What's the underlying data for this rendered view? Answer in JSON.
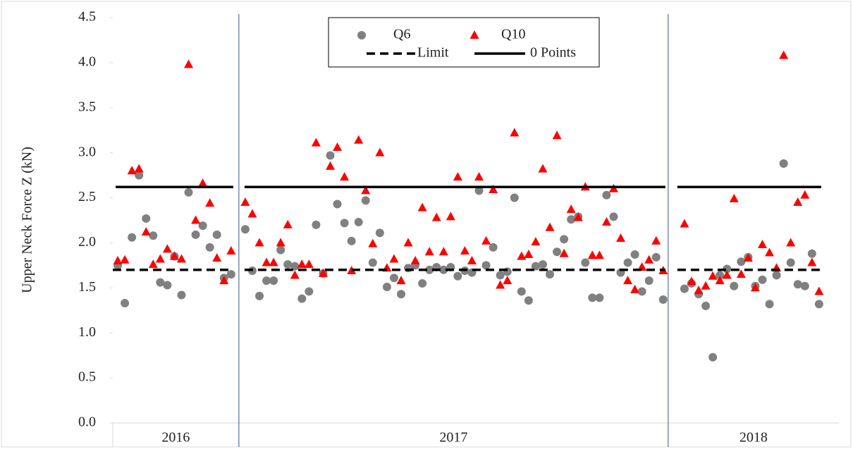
{
  "chart_data": {
    "type": "scatter",
    "y_label": "Upper Neck Force Z (kN)",
    "ylim": [
      0,
      4.5
    ],
    "yticks": [
      {
        "value": 0,
        "label": "0.0"
      },
      0.5,
      {
        "value": 1,
        "label": "1.0"
      },
      1.5,
      {
        "value": 2,
        "label": "2.0"
      },
      2.5,
      {
        "value": 3,
        "label": "3.0"
      },
      3.5,
      {
        "value": 4,
        "label": "4.0"
      },
      4.5
    ],
    "xlim": [
      -0.7,
      101.8
    ],
    "x_groups": [
      {
        "label": "2016",
        "range": [
          -0.7,
          17.1
        ]
      },
      {
        "label": "2017",
        "range": [
          17.1,
          77.7
        ]
      },
      {
        "label": "2018",
        "range": [
          77.7,
          101.8
        ]
      }
    ],
    "legend": "top-center",
    "series": [
      {
        "name": "Q6",
        "color": "#808080",
        "marker": "circle",
        "x": [
          0,
          1,
          2,
          3,
          4,
          5,
          6,
          7,
          8,
          9,
          10,
          11,
          12,
          13,
          14,
          15,
          16,
          18,
          19,
          20,
          21,
          22,
          23,
          24,
          25,
          26,
          27,
          28,
          29,
          30,
          31,
          32,
          33,
          34,
          35,
          36,
          37,
          38,
          39,
          40,
          41,
          42,
          43,
          44,
          45,
          46,
          47,
          48,
          49,
          50,
          51,
          52,
          53,
          54,
          55,
          56,
          57,
          58,
          59,
          60,
          61,
          62,
          63,
          64,
          65,
          66,
          67,
          68,
          69,
          70,
          71,
          72,
          73,
          74,
          75,
          76,
          77,
          80,
          81,
          82,
          83,
          84,
          85,
          86,
          87,
          88,
          89,
          90,
          91,
          92,
          93,
          94,
          95,
          96,
          97,
          98,
          99
        ],
        "values": [
          1.75,
          1.33,
          2.06,
          2.75,
          2.27,
          2.08,
          1.56,
          1.53,
          1.85,
          1.42,
          2.56,
          2.09,
          2.19,
          1.95,
          2.09,
          1.61,
          1.65,
          2.15,
          1.69,
          1.41,
          1.58,
          1.58,
          1.92,
          1.76,
          1.74,
          1.38,
          1.46,
          2.2,
          1.66,
          2.97,
          2.43,
          2.22,
          2.02,
          2.23,
          2.47,
          1.78,
          2.11,
          1.51,
          1.61,
          1.43,
          1.72,
          1.75,
          1.55,
          1.7,
          1.73,
          1.7,
          1.73,
          1.63,
          1.69,
          1.67,
          2.58,
          1.75,
          1.95,
          1.64,
          1.68,
          2.5,
          1.46,
          1.36,
          1.74,
          1.76,
          1.65,
          1.9,
          2.04,
          2.26,
          2.29,
          1.78,
          1.39,
          1.39,
          2.53,
          2.29,
          1.67,
          1.78,
          1.87,
          1.46,
          1.58,
          1.84,
          1.37,
          1.49,
          1.55,
          1.43,
          1.3,
          0.73,
          1.64,
          1.71,
          1.52,
          1.79,
          1.84,
          1.52,
          1.59,
          1.32,
          1.64,
          2.88,
          1.78,
          1.54,
          1.52,
          1.88,
          1.32
        ]
      },
      {
        "name": "Q10",
        "color": "#ff0000",
        "marker": "triangle",
        "x": [
          0,
          1,
          2,
          3,
          4,
          5,
          6,
          7,
          8,
          9,
          10,
          11,
          12,
          13,
          14,
          15,
          16,
          18,
          19,
          20,
          21,
          22,
          23,
          24,
          25,
          26,
          27,
          28,
          29,
          30,
          31,
          32,
          33,
          34,
          35,
          36,
          37,
          38,
          39,
          40,
          41,
          42,
          43,
          44,
          45,
          46,
          47,
          48,
          49,
          50,
          51,
          52,
          53,
          54,
          55,
          56,
          57,
          58,
          59,
          60,
          61,
          62,
          63,
          64,
          65,
          66,
          67,
          68,
          69,
          70,
          71,
          72,
          73,
          74,
          75,
          76,
          77,
          80,
          81,
          82,
          83,
          84,
          85,
          86,
          87,
          88,
          89,
          90,
          91,
          92,
          93,
          94,
          95,
          96,
          97,
          98,
          99
        ],
        "values": [
          1.8,
          1.81,
          2.8,
          2.82,
          2.12,
          1.76,
          1.82,
          1.93,
          1.85,
          1.82,
          3.98,
          2.25,
          2.66,
          2.44,
          1.83,
          1.58,
          1.91,
          2.45,
          2.32,
          2.0,
          1.78,
          1.78,
          2.0,
          2.2,
          1.64,
          1.76,
          1.76,
          3.11,
          1.66,
          2.85,
          3.06,
          2.73,
          1.69,
          3.14,
          2.58,
          1.99,
          3.0,
          1.72,
          1.82,
          1.58,
          2.0,
          1.8,
          2.39,
          1.9,
          2.28,
          1.9,
          2.29,
          2.73,
          1.91,
          1.8,
          2.73,
          2.02,
          2.59,
          1.53,
          1.58,
          3.22,
          1.85,
          1.87,
          2.01,
          2.82,
          2.17,
          3.19,
          1.88,
          2.37,
          2.28,
          2.62,
          1.86,
          1.86,
          2.23,
          2.6,
          2.05,
          1.58,
          1.48,
          1.73,
          1.81,
          2.02,
          1.69,
          2.21,
          1.57,
          1.47,
          1.52,
          1.63,
          1.58,
          1.64,
          2.49,
          1.65,
          1.83,
          1.5,
          1.98,
          1.89,
          1.72,
          4.08,
          2.0,
          2.45,
          2.53,
          1.78,
          1.46
        ]
      },
      {
        "name": "Limit",
        "color": "#000000",
        "line": "dashed",
        "x": [
          -0.7,
          16.3,
          17.1,
          17.9,
          77.3,
          77.7,
          79,
          99.3
        ],
        "values": [
          1.7,
          1.7,
          null,
          1.7,
          1.7,
          null,
          1.7,
          1.7
        ]
      },
      {
        "name": "0 Points",
        "color": "#000000",
        "line": "solid",
        "x": [
          -0.3,
          16.3,
          17.1,
          17.9,
          77.3,
          77.7,
          79,
          99.3
        ],
        "values": [
          2.62,
          2.62,
          null,
          2.62,
          2.62,
          null,
          2.62,
          2.62
        ]
      }
    ]
  }
}
